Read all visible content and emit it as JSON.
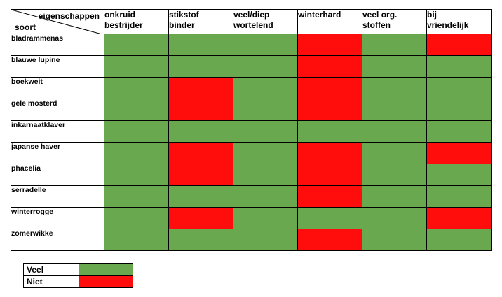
{
  "table": {
    "corner_top": "eigenschappen",
    "corner_bottom": "soort",
    "columns": [
      "onkruid\nbestrijder",
      "stikstof\nbinder",
      "veel/diep\nwortelend",
      "winterhard",
      "veel org.\nstoffen",
      "bij\nvriendelijk"
    ],
    "rows": [
      {
        "name": "bladrammenas",
        "values": [
          "veel",
          "veel",
          "veel",
          "niet",
          "veel",
          "niet"
        ]
      },
      {
        "name": "blauwe lupine",
        "values": [
          "veel",
          "veel",
          "veel",
          "niet",
          "veel",
          "veel"
        ]
      },
      {
        "name": "boekweit",
        "values": [
          "veel",
          "niet",
          "veel",
          "niet",
          "veel",
          "veel"
        ]
      },
      {
        "name": "gele mosterd",
        "values": [
          "veel",
          "niet",
          "veel",
          "niet",
          "veel",
          "veel"
        ]
      },
      {
        "name": "inkarnaatklaver",
        "values": [
          "veel",
          "veel",
          "veel",
          "veel",
          "veel",
          "veel"
        ]
      },
      {
        "name": "japanse haver",
        "values": [
          "veel",
          "niet",
          "veel",
          "niet",
          "veel",
          "niet"
        ]
      },
      {
        "name": "phacelia",
        "values": [
          "veel",
          "niet",
          "veel",
          "niet",
          "veel",
          "veel"
        ]
      },
      {
        "name": "serradelle",
        "values": [
          "veel",
          "veel",
          "veel",
          "niet",
          "veel",
          "veel"
        ]
      },
      {
        "name": "winterrogge",
        "values": [
          "veel",
          "niet",
          "veel",
          "veel",
          "veel",
          "niet"
        ]
      },
      {
        "name": "zomerwikke",
        "values": [
          "veel",
          "veel",
          "veel",
          "niet",
          "veel",
          "veel"
        ]
      }
    ]
  },
  "legend": [
    {
      "key": "veel",
      "label": "Veel",
      "color": "#6aa84f"
    },
    {
      "key": "niet",
      "label": "Niet",
      "color": "#ff0d0d"
    }
  ],
  "colors": {
    "veel": "#6aa84f",
    "niet": "#ff0d0d"
  }
}
